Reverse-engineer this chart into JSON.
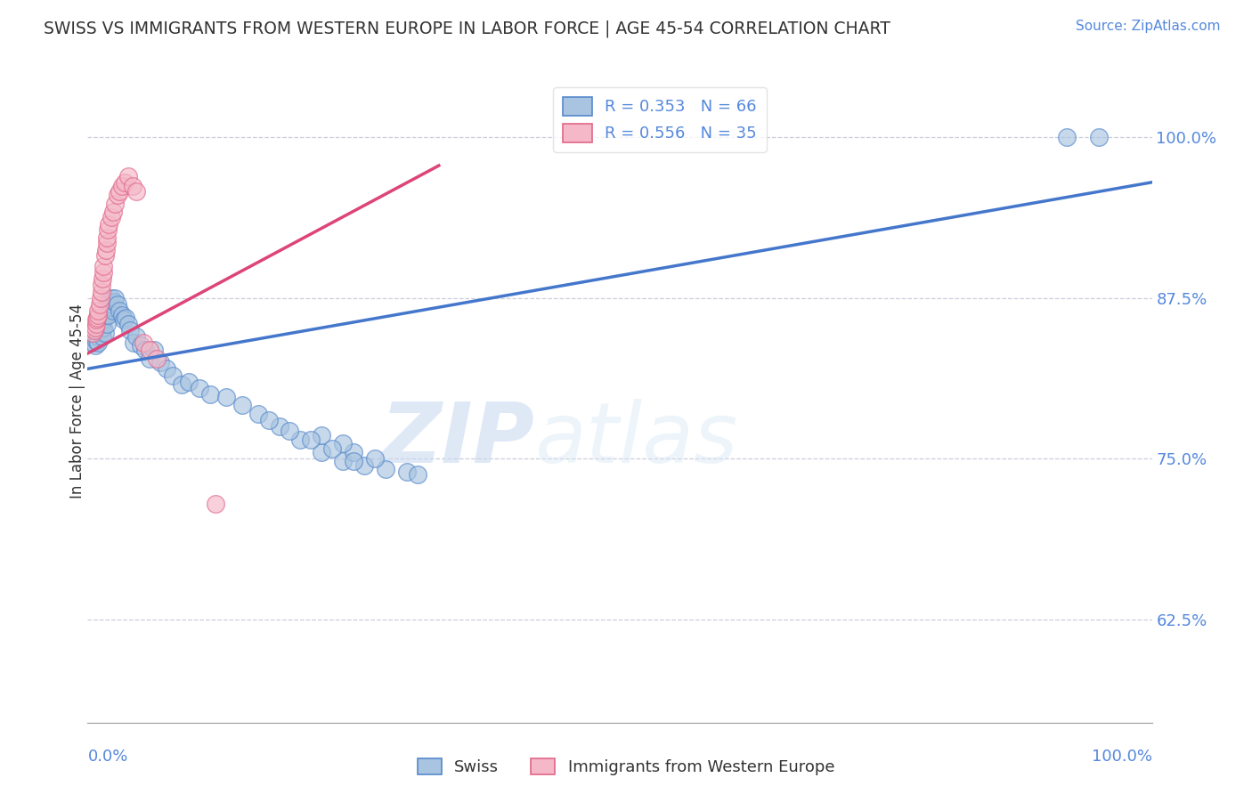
{
  "title": "SWISS VS IMMIGRANTS FROM WESTERN EUROPE IN LABOR FORCE | AGE 45-54 CORRELATION CHART",
  "source": "Source: ZipAtlas.com",
  "ylabel": "In Labor Force | Age 45-54",
  "ytick_labels": [
    "62.5%",
    "75.0%",
    "87.5%",
    "100.0%"
  ],
  "ytick_values": [
    0.625,
    0.75,
    0.875,
    1.0
  ],
  "xlim": [
    0.0,
    1.0
  ],
  "ylim": [
    0.545,
    1.045
  ],
  "legend_swiss_r": "R = 0.353",
  "legend_swiss_n": "N = 66",
  "legend_immigrants_r": "R = 0.556",
  "legend_immigrants_n": "N = 35",
  "swiss_color": "#a8c4e0",
  "immigrants_color": "#f4b8c8",
  "swiss_edge_color": "#5588cc",
  "immigrants_edge_color": "#e06688",
  "swiss_line_color": "#4477cc",
  "immigrants_line_color": "#dd4477",
  "background_color": "#ffffff",
  "watermark_zip": "ZIP",
  "watermark_atlas": "atlas",
  "swiss_x": [
    0.005,
    0.007,
    0.008,
    0.01,
    0.01,
    0.012,
    0.013,
    0.013,
    0.014,
    0.015,
    0.015,
    0.016,
    0.016,
    0.017,
    0.018,
    0.018,
    0.019,
    0.02,
    0.021,
    0.022,
    0.022,
    0.024,
    0.025,
    0.026,
    0.028,
    0.03,
    0.032,
    0.034,
    0.036,
    0.038,
    0.04,
    0.043,
    0.046,
    0.05,
    0.054,
    0.058,
    0.062,
    0.068,
    0.074,
    0.08,
    0.088,
    0.095,
    0.105,
    0.115,
    0.13,
    0.145,
    0.16,
    0.18,
    0.2,
    0.22,
    0.24,
    0.26,
    0.28,
    0.3,
    0.31,
    0.25,
    0.27,
    0.22,
    0.24,
    0.17,
    0.19,
    0.21,
    0.23,
    0.25,
    0.92,
    0.95
  ],
  "swiss_y": [
    0.84,
    0.838,
    0.842,
    0.845,
    0.84,
    0.85,
    0.848,
    0.855,
    0.845,
    0.852,
    0.858,
    0.862,
    0.848,
    0.865,
    0.87,
    0.855,
    0.862,
    0.872,
    0.868,
    0.875,
    0.87,
    0.865,
    0.872,
    0.875,
    0.87,
    0.865,
    0.862,
    0.858,
    0.86,
    0.855,
    0.85,
    0.84,
    0.845,
    0.838,
    0.835,
    0.828,
    0.835,
    0.825,
    0.82,
    0.815,
    0.808,
    0.81,
    0.805,
    0.8,
    0.798,
    0.792,
    0.785,
    0.775,
    0.765,
    0.755,
    0.748,
    0.745,
    0.742,
    0.74,
    0.738,
    0.755,
    0.75,
    0.768,
    0.762,
    0.78,
    0.772,
    0.765,
    0.758,
    0.748,
    1.0,
    1.0
  ],
  "immigrants_x": [
    0.005,
    0.006,
    0.007,
    0.008,
    0.008,
    0.009,
    0.01,
    0.01,
    0.011,
    0.012,
    0.013,
    0.013,
    0.014,
    0.015,
    0.015,
    0.016,
    0.017,
    0.018,
    0.018,
    0.019,
    0.02,
    0.022,
    0.024,
    0.026,
    0.028,
    0.03,
    0.032,
    0.035,
    0.038,
    0.042,
    0.046,
    0.052,
    0.058,
    0.065,
    0.12
  ],
  "immigrants_y": [
    0.848,
    0.85,
    0.852,
    0.855,
    0.858,
    0.86,
    0.862,
    0.865,
    0.87,
    0.875,
    0.88,
    0.885,
    0.89,
    0.895,
    0.9,
    0.908,
    0.912,
    0.918,
    0.922,
    0.928,
    0.932,
    0.938,
    0.942,
    0.948,
    0.955,
    0.958,
    0.962,
    0.965,
    0.97,
    0.962,
    0.958,
    0.84,
    0.835,
    0.828,
    0.715
  ],
  "swiss_trendline_x": [
    0.0,
    1.0
  ],
  "swiss_trendline_y": [
    0.82,
    0.965
  ],
  "immigrants_trendline_x": [
    0.0,
    0.33
  ],
  "immigrants_trendline_y": [
    0.832,
    0.978
  ]
}
